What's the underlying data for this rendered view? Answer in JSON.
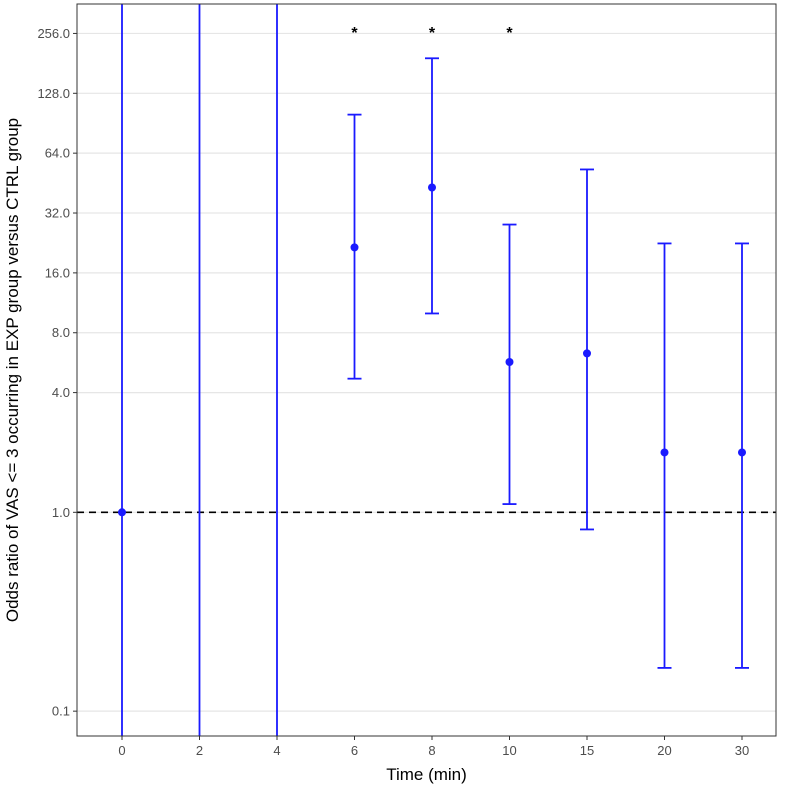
{
  "chart_data": {
    "type": "scatter",
    "title": "",
    "xlabel": "Time (min)",
    "ylabel": "Odds ratio of VAS <= 3 occurring in EXP group versus CTRL group",
    "y_scale": "log2",
    "ylim": [
      0.075,
      360
    ],
    "yticks": [
      0.1,
      1.0,
      4.0,
      8.0,
      16.0,
      32.0,
      64.0,
      128.0,
      256.0
    ],
    "ytick_labels": [
      "0.1",
      "1.0",
      "4.0",
      "8.0",
      "16.0",
      "32.0",
      "64.0",
      "128.0",
      "256.0"
    ],
    "categories": [
      "0",
      "2",
      "4",
      "6",
      "8",
      "10",
      "15",
      "20",
      "30"
    ],
    "points": [
      {
        "x": "0",
        "or": 1.0,
        "lower": 0.05,
        "upper": 1000,
        "significant": ""
      },
      {
        "x": "2",
        "or": null,
        "lower": 0.05,
        "upper": 1000,
        "significant": ""
      },
      {
        "x": "4",
        "or": null,
        "lower": 0.05,
        "upper": 1000,
        "significant": ""
      },
      {
        "x": "6",
        "or": 21.5,
        "lower": 4.7,
        "upper": 100,
        "significant": "*"
      },
      {
        "x": "8",
        "or": 43,
        "lower": 10,
        "upper": 192,
        "significant": "*"
      },
      {
        "x": "10",
        "or": 5.7,
        "lower": 1.1,
        "upper": 28,
        "significant": "*"
      },
      {
        "x": "15",
        "or": 6.3,
        "lower": 0.82,
        "upper": 53,
        "significant": ""
      },
      {
        "x": "20",
        "or": 2.0,
        "lower": 0.165,
        "upper": 22.5,
        "significant": ""
      },
      {
        "x": "30",
        "or": 2.0,
        "lower": 0.165,
        "upper": 22.5,
        "significant": ""
      }
    ],
    "reference_line": 1.0,
    "grid": true,
    "legend": "none",
    "colors": {
      "series": "#1a1aff",
      "grid": "#e6e6e6",
      "reference": "#000000",
      "frame": "#333333"
    }
  }
}
